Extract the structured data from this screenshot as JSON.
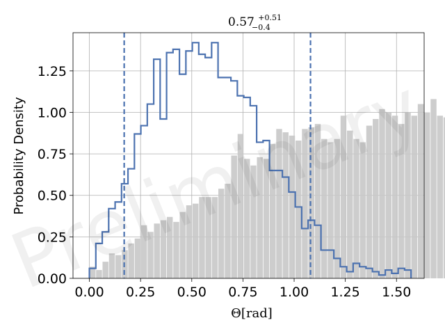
{
  "chart_data": {
    "type": "histogram",
    "title": {
      "main": "0.57",
      "sup": "+0.51",
      "sub": "−0.4"
    },
    "xlabel": {
      "main": "Θ",
      "unit": "[rad]"
    },
    "ylabel": "Probability Density",
    "xlim": [
      -0.08,
      1.635
    ],
    "ylim": [
      0.0,
      1.48
    ],
    "xticks": [
      0.0,
      0.25,
      0.5,
      0.75,
      1.0,
      1.25,
      1.5
    ],
    "xtick_labels": [
      "0.00",
      "0.25",
      "0.50",
      "0.75",
      "1.00",
      "1.25",
      "1.50"
    ],
    "yticks": [
      0.0,
      0.25,
      0.5,
      0.75,
      1.0,
      1.25
    ],
    "ytick_labels": [
      "0.00",
      "0.25",
      "0.50",
      "0.75",
      "1.00",
      "1.25"
    ],
    "grid": true,
    "watermark": "Preliminary",
    "bin_edges_start": 0.0,
    "bin_width": 0.03142,
    "series": [
      {
        "style": "filled",
        "color": "#c8c8c8",
        "values": [
          0.07,
          0.05,
          0.1,
          0.15,
          0.14,
          0.17,
          0.21,
          0.24,
          0.32,
          0.28,
          0.33,
          0.35,
          0.37,
          0.34,
          0.4,
          0.44,
          0.45,
          0.49,
          0.49,
          0.49,
          0.54,
          0.57,
          0.74,
          0.87,
          0.72,
          0.68,
          0.73,
          0.72,
          0.81,
          0.9,
          0.88,
          0.86,
          0.83,
          0.9,
          0.91,
          0.93,
          0.84,
          0.82,
          0.84,
          0.98,
          0.89,
          0.84,
          0.82,
          0.92,
          0.96,
          1.02,
          1.0,
          0.98,
          0.93,
          1.0,
          0.98,
          1.05,
          1.0,
          1.08,
          0.98,
          0.97,
          0.95
        ]
      },
      {
        "style": "step",
        "color": "#4c72b0",
        "values": [
          0.06,
          0.21,
          0.28,
          0.42,
          0.46,
          0.57,
          0.66,
          0.87,
          0.92,
          1.05,
          1.32,
          0.96,
          1.36,
          1.38,
          1.23,
          1.37,
          1.42,
          1.35,
          1.33,
          1.42,
          1.21,
          1.21,
          1.19,
          1.1,
          1.09,
          1.04,
          0.82,
          0.83,
          0.65,
          0.65,
          0.61,
          0.52,
          0.43,
          0.3,
          0.35,
          0.32,
          0.17,
          0.17,
          0.12,
          0.07,
          0.04,
          0.09,
          0.07,
          0.06,
          0.04,
          0.02,
          0.05,
          0.03,
          0.06,
          0.05
        ]
      }
    ],
    "vlines": [
      {
        "x": 0.17,
        "color": "#4c72b0",
        "style": "dashed"
      },
      {
        "x": 1.08,
        "color": "#4c72b0",
        "style": "dashed"
      }
    ]
  }
}
